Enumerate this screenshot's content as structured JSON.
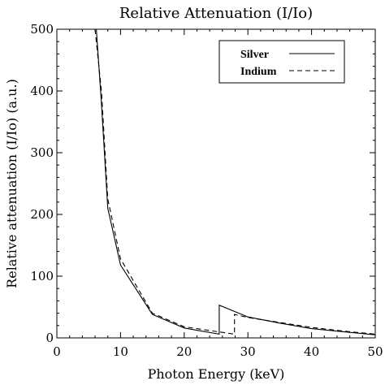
{
  "chart_data": {
    "type": "line",
    "title": "Relative Attenuation (I/Io)",
    "xlabel": "Photon Energy (keV)",
    "ylabel": "Relative attenuation (I/Io) (a.u.)",
    "xlim": [
      0,
      50
    ],
    "ylim": [
      0,
      500
    ],
    "xticks": [
      0,
      10,
      20,
      30,
      40,
      50
    ],
    "yticks": [
      0,
      100,
      200,
      300,
      400,
      500
    ],
    "legend_position": "top-right",
    "series": [
      {
        "name": "Silver",
        "style": "solid",
        "color": "#000000",
        "points": [
          [
            6.2,
            500
          ],
          [
            7,
            380
          ],
          [
            8,
            210
          ],
          [
            10,
            118
          ],
          [
            15,
            38
          ],
          [
            20,
            16
          ],
          [
            25.5,
            6
          ],
          [
            25.5,
            53
          ],
          [
            30,
            34
          ],
          [
            35,
            24
          ],
          [
            40,
            15
          ],
          [
            45,
            10
          ],
          [
            50,
            5
          ]
        ]
      },
      {
        "name": "Indium",
        "style": "dashed",
        "color": "#000000",
        "points": [
          [
            6.0,
            500
          ],
          [
            7,
            400
          ],
          [
            8,
            225
          ],
          [
            10,
            128
          ],
          [
            15,
            40
          ],
          [
            20,
            18
          ],
          [
            27.9,
            6
          ],
          [
            27.9,
            38
          ],
          [
            30,
            33
          ],
          [
            35,
            25
          ],
          [
            40,
            17
          ],
          [
            45,
            11
          ],
          [
            50,
            6
          ]
        ]
      }
    ]
  }
}
